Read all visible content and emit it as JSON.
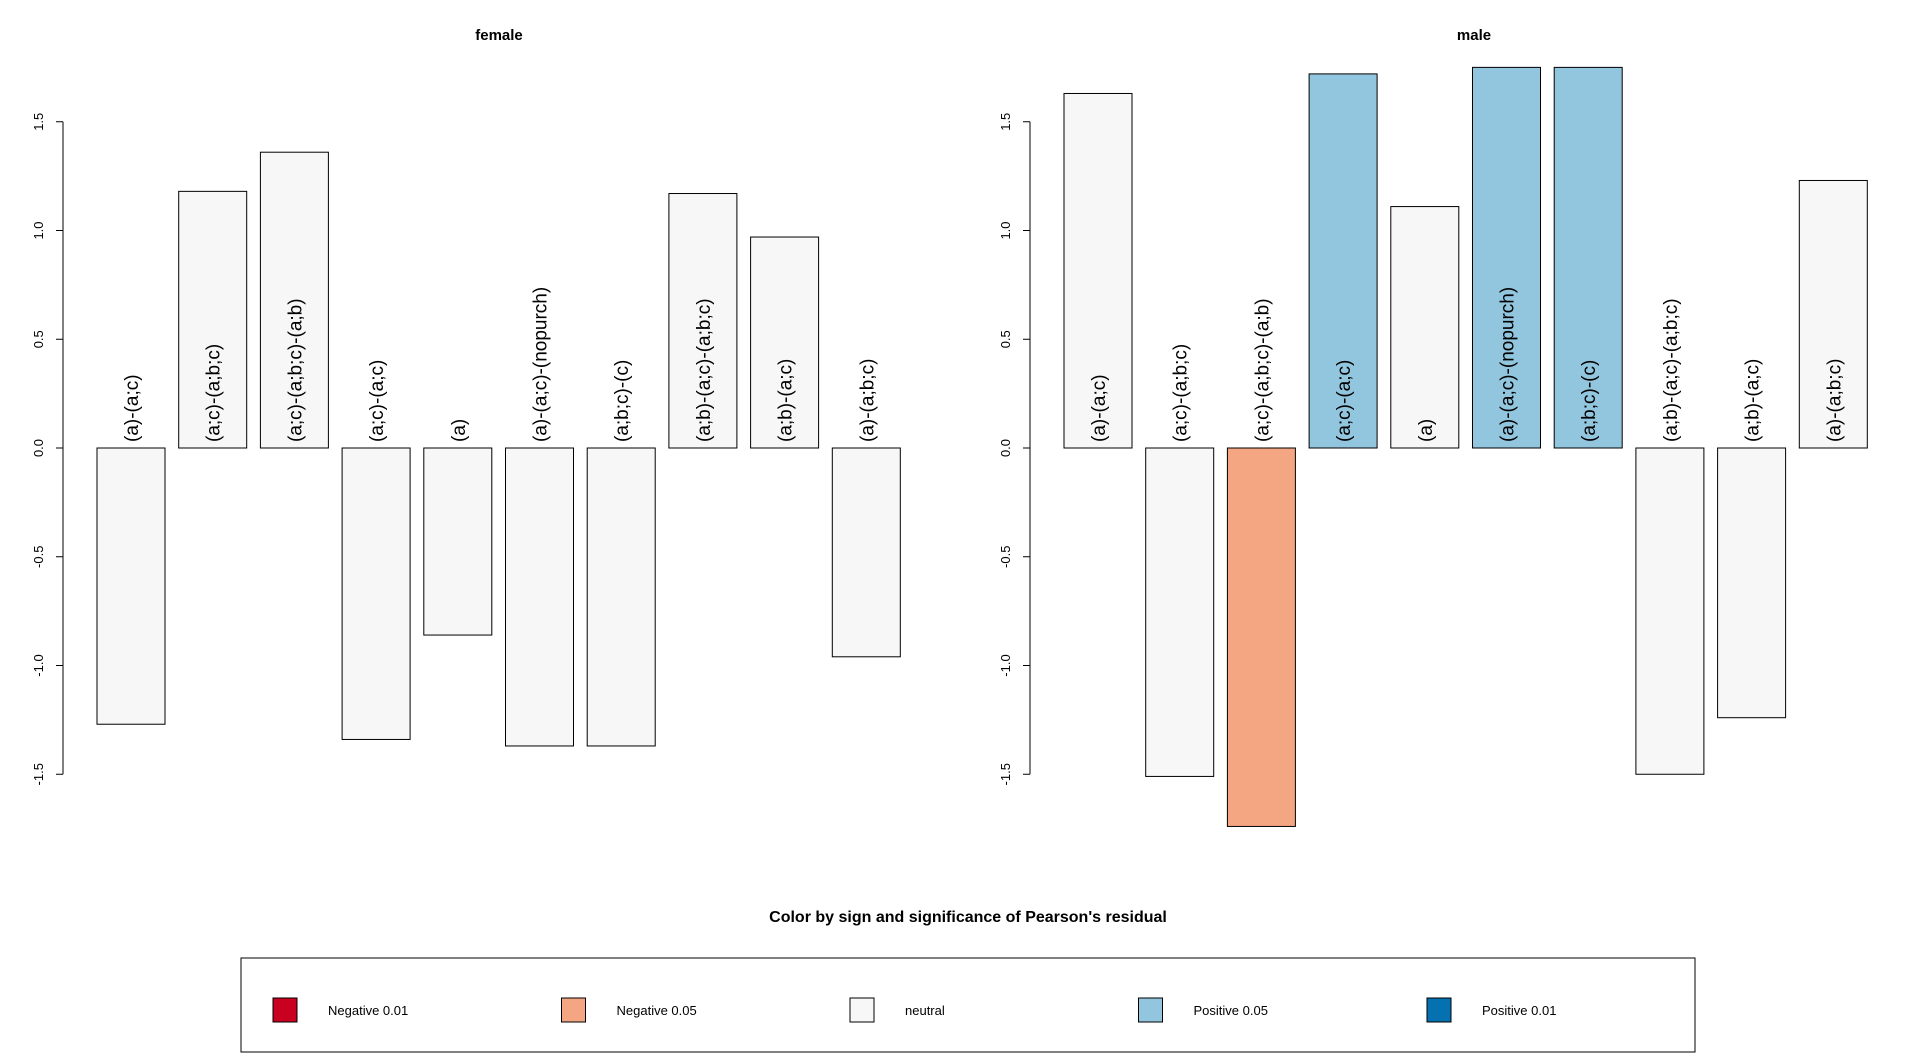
{
  "chart_data": [
    {
      "type": "bar",
      "title": "female",
      "xlabel": "",
      "ylabel": "",
      "ylim": [
        -1.5,
        1.5
      ],
      "yticks": [
        "-1.5",
        "-1.0",
        "-0.5",
        "0.0",
        "0.5",
        "1.0",
        "1.5"
      ],
      "categories": [
        "(a)-(a;c)",
        "(a;c)-(a;b;c)",
        "(a;c)-(a;b;c)-(a;b)",
        "(a;c)-(a;c)",
        "(a)",
        "(a)-(a;c)-(nopurch)",
        "(a;b;c)-(c)",
        "(a;b)-(a;c)-(a;b;c)",
        "(a;b)-(a;c)",
        "(a)-(a;b;c)"
      ],
      "values": [
        -1.27,
        1.18,
        1.36,
        -1.34,
        -0.86,
        -1.37,
        -1.37,
        1.17,
        0.97,
        -0.96
      ],
      "significance": [
        "neutral",
        "neutral",
        "neutral",
        "neutral",
        "neutral",
        "neutral",
        "neutral",
        "neutral",
        "neutral",
        "neutral"
      ]
    },
    {
      "type": "bar",
      "title": "male",
      "xlabel": "",
      "ylabel": "",
      "ylim": [
        -1.5,
        1.5
      ],
      "yticks": [
        "-1.5",
        "-1.0",
        "-0.5",
        "0.0",
        "0.5",
        "1.0",
        "1.5"
      ],
      "categories": [
        "(a)-(a;c)",
        "(a;c)-(a;b;c)",
        "(a;c)-(a;b;c)-(a;b)",
        "(a;c)-(a;c)",
        "(a)",
        "(a)-(a;c)-(nopurch)",
        "(a;b;c)-(c)",
        "(a;b)-(a;c)-(a;b;c)",
        "(a;b)-(a;c)",
        "(a)-(a;b;c)"
      ],
      "values": [
        1.63,
        -1.51,
        -1.74,
        1.72,
        1.11,
        1.75,
        1.75,
        -1.5,
        -1.24,
        1.23
      ],
      "significance": [
        "neutral",
        "neutral",
        "neg05",
        "pos05",
        "neutral",
        "pos05",
        "pos05",
        "neutral",
        "neutral",
        "neutral"
      ]
    }
  ],
  "legend": {
    "title": "Color by sign and significance of Pearson's residual",
    "items": [
      {
        "key": "neg01",
        "label": "Negative 0.01",
        "color": "#CA0020"
      },
      {
        "key": "neg05",
        "label": "Negative 0.05",
        "color": "#F4A582"
      },
      {
        "key": "neutral",
        "label": "neutral",
        "color": "#F7F7F7"
      },
      {
        "key": "pos05",
        "label": "Positive 0.05",
        "color": "#92C5DE"
      },
      {
        "key": "pos01",
        "label": "Positive 0.01",
        "color": "#0571B0"
      }
    ]
  }
}
